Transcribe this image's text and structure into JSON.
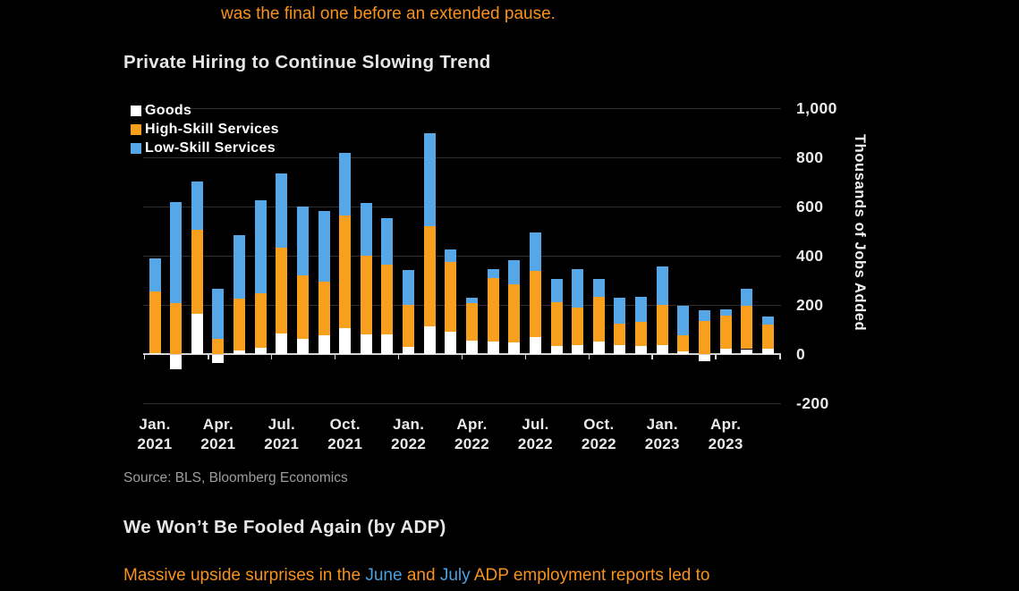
{
  "page": {
    "background": "#000000"
  },
  "top_paragraph": {
    "text": "was the final one before an extended pause.",
    "color": "#f8921d"
  },
  "chart": {
    "title": "Private Hiring to Continue Slowing Trend",
    "source": "Source: BLS, Bloomberg Economics",
    "colors": {
      "goods": "#ffffff",
      "high_skill": "#f8a01e",
      "low_skill": "#55a7e8",
      "gridline": "#2e2e2e",
      "axis_line": "#d4d4d4",
      "tick_text": "#eaeaea"
    },
    "legend": [
      {
        "label": "Goods",
        "color": "#ffffff"
      },
      {
        "label": "High-Skill Services",
        "color": "#f8a01e"
      },
      {
        "label": "Low-Skill Services",
        "color": "#55a7e8"
      }
    ],
    "y_axis": {
      "label": "Thousands of Jobs Added",
      "ticks": [
        {
          "label": "1,000",
          "value": 1000
        },
        {
          "label": "800",
          "value": 800
        },
        {
          "label": "600",
          "value": 600
        },
        {
          "label": "400",
          "value": 400
        },
        {
          "label": "200",
          "value": 200
        },
        {
          "label": "0",
          "value": 0
        },
        {
          "label": "-200",
          "value": -200
        }
      ]
    },
    "x_axis": {
      "labels": [
        {
          "month": "Jan.",
          "year": "2021"
        },
        {
          "month": "Apr.",
          "year": "2021"
        },
        {
          "month": "Jul.",
          "year": "2021"
        },
        {
          "month": "Oct.",
          "year": "2021"
        },
        {
          "month": "Jan.",
          "year": "2022"
        },
        {
          "month": "Apr.",
          "year": "2022"
        },
        {
          "month": "Jul.",
          "year": "2022"
        },
        {
          "month": "Oct.",
          "year": "2022"
        },
        {
          "month": "Jan.",
          "year": "2023"
        },
        {
          "month": "Apr.",
          "year": "2023"
        }
      ]
    }
  },
  "chart_data": {
    "type": "bar",
    "stacked": true,
    "title": "Private Hiring to Continue Slowing Trend",
    "ylabel": "Thousands of Jobs Added",
    "ylim": [
      -200,
      1000
    ],
    "units": "thousands of jobs added",
    "grid": "horizontal",
    "legend_position": "top-left",
    "categories": [
      "Jan. 2021",
      "Feb. 2021",
      "Mar. 2021",
      "Apr. 2021",
      "May 2021",
      "Jun. 2021",
      "Jul. 2021",
      "Aug. 2021",
      "Sep. 2021",
      "Oct. 2021",
      "Nov. 2021",
      "Dec. 2021",
      "Jan. 2022",
      "Feb. 2022",
      "Mar. 2022",
      "Apr. 2022",
      "May 2022",
      "Jun. 2022",
      "Jul. 2022",
      "Aug. 2022",
      "Sep. 2022",
      "Oct. 2022",
      "Nov. 2022",
      "Dec. 2022",
      "Jan. 2023",
      "Feb. 2023",
      "Mar. 2023",
      "Apr. 2023",
      "May 2023",
      "Jun. 2023"
    ],
    "series": [
      {
        "name": "Goods",
        "color": "#ffffff",
        "values": [
          5,
          -57,
          165,
          -33,
          13,
          24,
          85,
          61,
          76,
          107,
          80,
          80,
          28,
          113,
          91,
          55,
          52,
          48,
          70,
          34,
          36,
          52,
          36,
          31,
          35,
          12,
          -27,
          22,
          20,
          22
        ]
      },
      {
        "name": "High-Skill Services",
        "color": "#f8a01e",
        "values": [
          250,
          206,
          342,
          61,
          211,
          222,
          349,
          260,
          219,
          457,
          320,
          284,
          173,
          406,
          285,
          151,
          257,
          234,
          267,
          176,
          152,
          182,
          89,
          100,
          165,
          64,
          133,
          136,
          177,
          97
        ]
      },
      {
        "name": "Low-Skill Services",
        "color": "#55a7e8",
        "values": [
          133,
          414,
          196,
          203,
          258,
          379,
          299,
          279,
          287,
          255,
          213,
          187,
          142,
          379,
          49,
          22,
          36,
          101,
          158,
          97,
          159,
          70,
          105,
          100,
          155,
          122,
          44,
          24,
          67,
          33
        ]
      }
    ]
  },
  "section_heading": {
    "text": "We Won’t Be Fooled Again (by ADP)"
  },
  "bottom_paragraph": {
    "segments": [
      {
        "text": "Massive upside surprises in the ",
        "color": "#f8921d",
        "link": false,
        "name": "bottom-paragraph-text"
      },
      {
        "text": "June",
        "color": "#4ba0e0",
        "link": true,
        "name": "link-june"
      },
      {
        "text": " and ",
        "color": "#f8921d",
        "link": false,
        "name": "bottom-paragraph-text"
      },
      {
        "text": "July",
        "color": "#4ba0e0",
        "link": true,
        "name": "link-july"
      },
      {
        "text": " ADP employment reports led to",
        "color": "#f8921d",
        "link": false,
        "name": "bottom-paragraph-text"
      }
    ]
  }
}
